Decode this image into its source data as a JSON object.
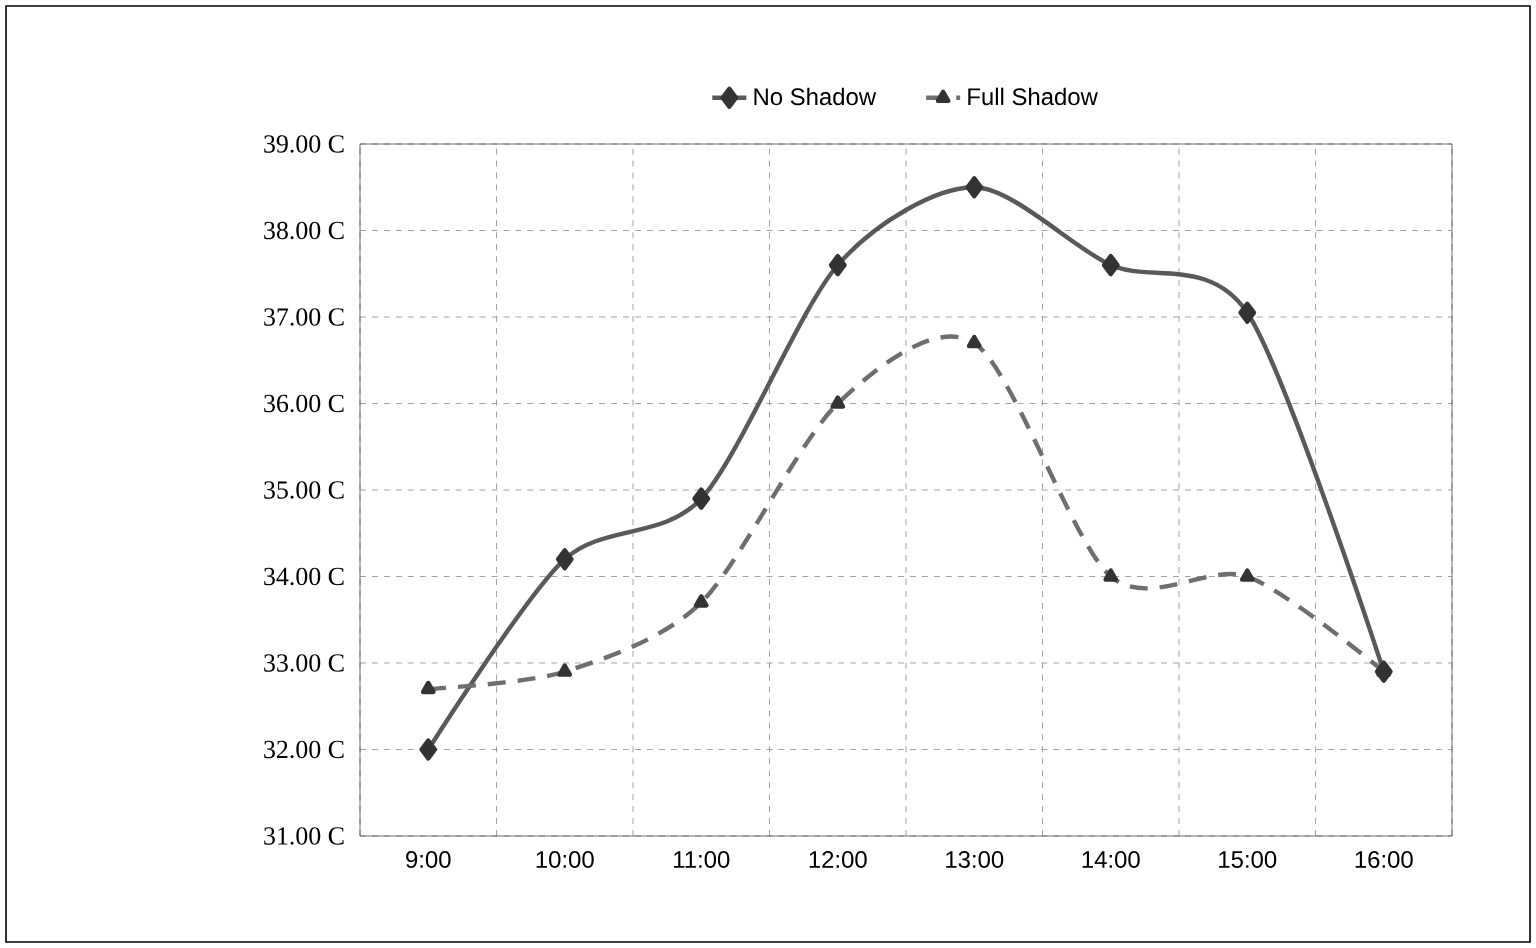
{
  "chart_data": {
    "type": "line",
    "categories": [
      "9:00",
      "10:00",
      "11:00",
      "12:00",
      "13:00",
      "14:00",
      "15:00",
      "16:00"
    ],
    "series": [
      {
        "name": "No Shadow",
        "color": "#595959",
        "marker": "diamond",
        "line_style": "solid",
        "values": [
          32.0,
          34.2,
          34.9,
          37.6,
          38.5,
          37.6,
          37.05,
          32.9
        ]
      },
      {
        "name": "Full Shadow",
        "color": "#6e6e6e",
        "marker": "triangle",
        "line_style": "dashed",
        "values": [
          32.7,
          32.9,
          33.7,
          36.0,
          36.7,
          34.0,
          34.0,
          32.9
        ]
      }
    ],
    "ylim": [
      31,
      39
    ],
    "yticks": [
      {
        "value": 31,
        "label": "31.00  C"
      },
      {
        "value": 32,
        "label": "32.00  C"
      },
      {
        "value": 33,
        "label": "33.00  C"
      },
      {
        "value": 34,
        "label": "34.00  C"
      },
      {
        "value": 35,
        "label": "35.00  C"
      },
      {
        "value": 36,
        "label": "36.00  C"
      },
      {
        "value": 37,
        "label": "37.00  C"
      },
      {
        "value": 38,
        "label": "38.00  C"
      },
      {
        "value": 39,
        "label": "39.00  C"
      }
    ],
    "grid": true,
    "legend": "top"
  }
}
